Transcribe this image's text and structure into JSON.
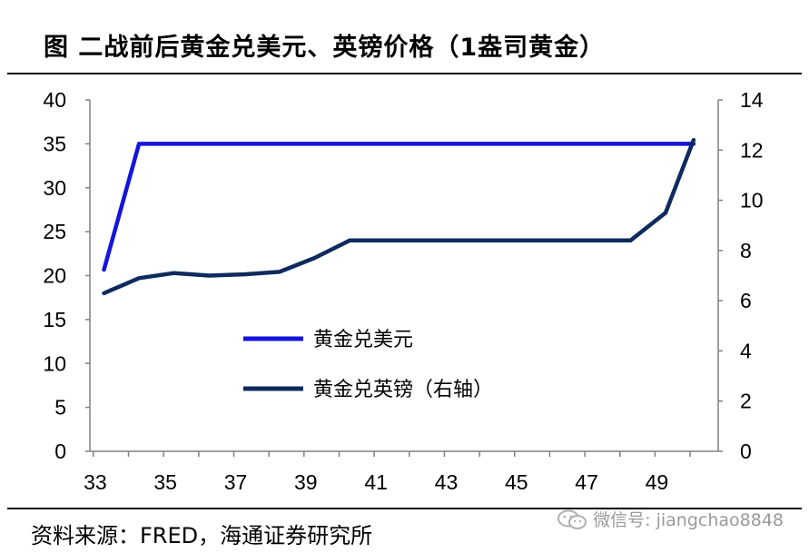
{
  "header": {
    "title": "图  二战前后黄金兑美元、英镑价格（1盎司黄金）"
  },
  "footer": {
    "source": "资料来源：FRED，海通证券研究所",
    "watermark": "微信号: jiangchao8848"
  },
  "colors": {
    "usd_line": "#1414dc",
    "gbp_line": "#0e2a5e",
    "axis": "#808080"
  },
  "chart_data": {
    "type": "line",
    "x": [
      33.3,
      34.3,
      35.3,
      36.3,
      37.3,
      38.3,
      39.3,
      40.3,
      41.3,
      42.3,
      43.3,
      44.3,
      45.3,
      46.3,
      47.3,
      48.3,
      49.3,
      50.1
    ],
    "x_ticks": [
      33,
      35,
      37,
      39,
      41,
      43,
      45,
      47,
      49
    ],
    "xlim": [
      32.9,
      50.8
    ],
    "series": [
      {
        "name": "黄金兑美元",
        "axis": "left",
        "x": [
          33.3,
          34.3,
          35.3,
          36.3,
          37.3,
          38.3,
          39.3,
          40.3,
          41.3,
          42.3,
          43.3,
          44.3,
          45.3,
          46.3,
          47.3,
          48.3,
          49.3,
          50.1
        ],
        "values": [
          20.67,
          35,
          35,
          35,
          35,
          35,
          35,
          35,
          35,
          35,
          35,
          35,
          35,
          35,
          35,
          35,
          35,
          35
        ]
      },
      {
        "name": "黄金兑英镑（右轴）",
        "axis": "right",
        "x": [
          33.3,
          34.3,
          35.3,
          36.3,
          37.3,
          38.3,
          39.3,
          40.3,
          41.3,
          42.3,
          43.3,
          44.3,
          45.3,
          46.3,
          47.3,
          48.3,
          49.3,
          50.1
        ],
        "values": [
          6.3,
          6.9,
          7.1,
          7.0,
          7.05,
          7.15,
          7.7,
          8.4,
          8.4,
          8.4,
          8.4,
          8.4,
          8.4,
          8.4,
          8.4,
          8.4,
          9.5,
          12.4
        ]
      }
    ],
    "y_left": {
      "ylim": [
        0,
        40
      ],
      "ticks": [
        0,
        5,
        10,
        15,
        20,
        25,
        30,
        35,
        40
      ]
    },
    "y_right": {
      "ylim": [
        0,
        14
      ],
      "ticks": [
        0,
        2,
        4,
        6,
        8,
        10,
        12,
        14
      ]
    },
    "legend": {
      "placement": "center-left"
    },
    "grid": false
  }
}
